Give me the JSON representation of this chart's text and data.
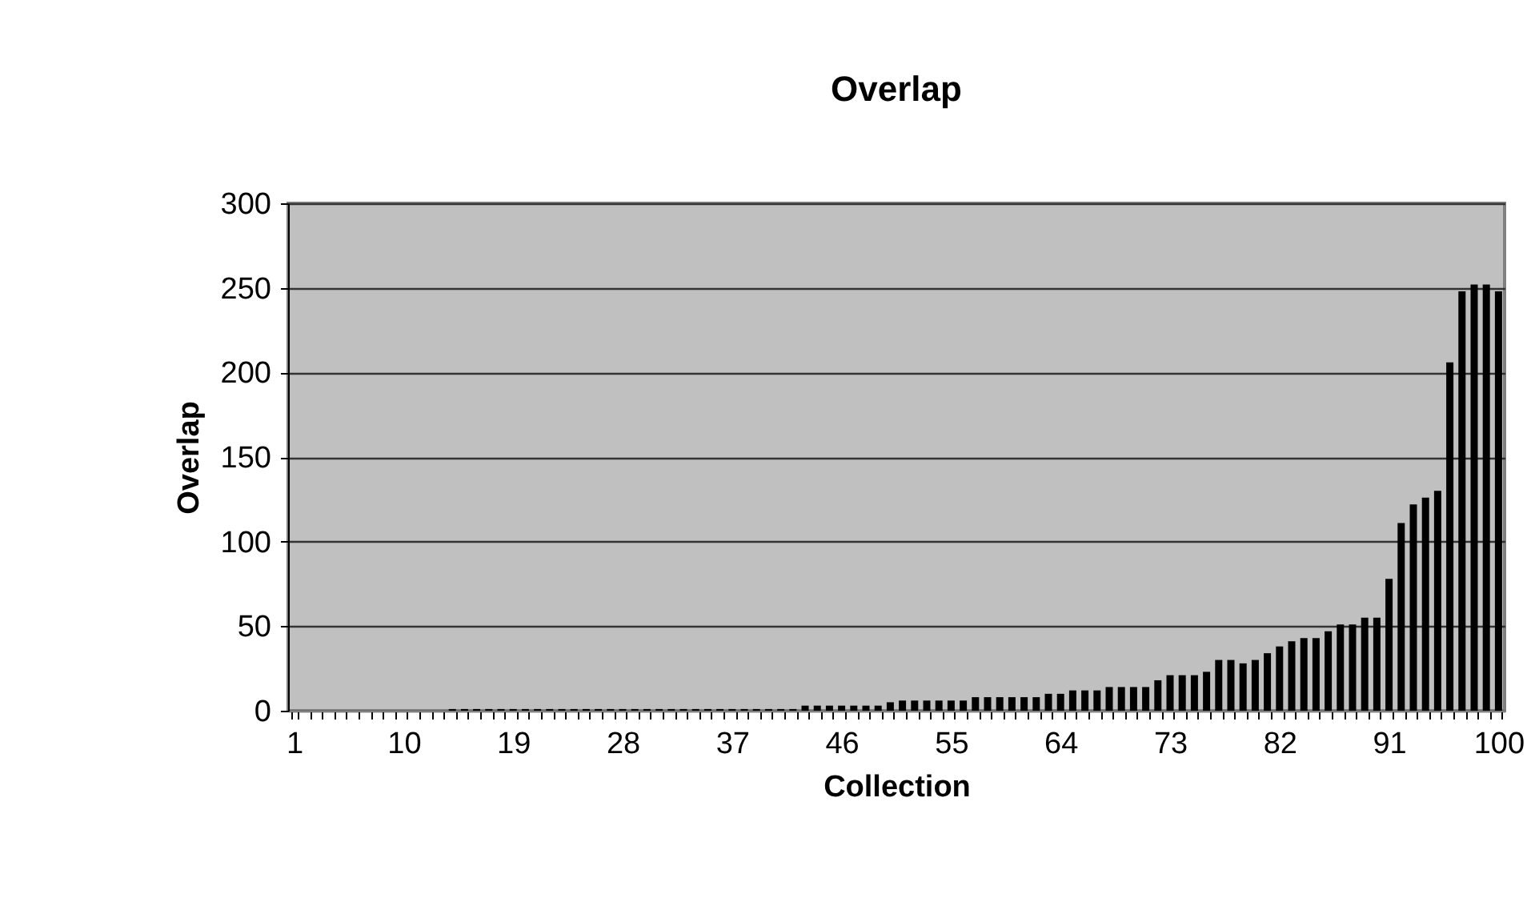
{
  "chart_data": {
    "type": "bar",
    "title": "Overlap",
    "xlabel": "Collection",
    "ylabel": "Overlap",
    "categories": [
      "1",
      null,
      null,
      null,
      null,
      null,
      null,
      null,
      null,
      "10",
      null,
      null,
      null,
      null,
      null,
      null,
      null,
      null,
      "19",
      null,
      null,
      null,
      null,
      null,
      null,
      null,
      null,
      "28",
      null,
      null,
      null,
      null,
      null,
      null,
      null,
      null,
      "37",
      null,
      null,
      null,
      null,
      null,
      null,
      null,
      null,
      "46",
      null,
      null,
      null,
      null,
      null,
      null,
      null,
      null,
      "55",
      null,
      null,
      null,
      null,
      null,
      null,
      null,
      null,
      "64",
      null,
      null,
      null,
      null,
      null,
      null,
      null,
      null,
      "73",
      null,
      null,
      null,
      null,
      null,
      null,
      null,
      null,
      "82",
      null,
      null,
      null,
      null,
      null,
      null,
      null,
      null,
      "91",
      null,
      null,
      null,
      null,
      null,
      null,
      null,
      null,
      "100"
    ],
    "values": [
      0,
      0,
      0,
      0,
      0,
      0,
      0,
      0,
      0,
      0,
      0,
      0,
      0,
      1,
      1,
      1,
      1,
      1,
      1,
      1,
      1,
      1,
      1,
      1,
      1,
      1,
      1,
      1,
      1,
      1,
      1,
      1,
      1,
      1,
      1,
      1,
      1,
      1,
      1,
      1,
      1,
      1,
      3,
      3,
      3,
      3,
      3,
      3,
      3,
      5,
      6,
      6,
      6,
      6,
      6,
      6,
      8,
      8,
      8,
      8,
      8,
      8,
      10,
      10,
      12,
      12,
      12,
      14,
      14,
      14,
      14,
      18,
      21,
      21,
      21,
      23,
      30,
      30,
      28,
      30,
      34,
      38,
      41,
      43,
      43,
      47,
      51,
      51,
      55,
      55,
      78,
      111,
      122,
      126,
      130,
      206,
      248,
      252,
      252,
      248
    ],
    "color": "#000000",
    "ylim": [
      0,
      300
    ],
    "yticks": [
      0,
      50,
      100,
      150,
      200,
      250,
      300
    ],
    "grid": "y"
  }
}
